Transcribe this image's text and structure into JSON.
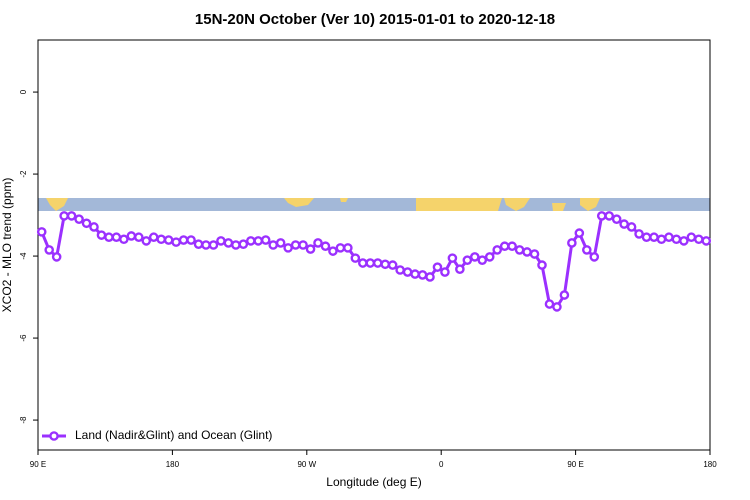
{
  "chart_data": {
    "type": "line",
    "title": "15N-20N October (Ver 10)   2015-01-01 to 2020-12-18",
    "x_label": "Longitude (deg E)",
    "y_label": "XCO2 - MLO trend (ppm)",
    "x": [
      92.5,
      97.5,
      102.5,
      107.5,
      112.5,
      117.5,
      122.5,
      127.5,
      132.5,
      137.5,
      142.5,
      147.5,
      152.5,
      157.5,
      162.5,
      167.5,
      172.5,
      177.5,
      182.5,
      187.5,
      192.5,
      197.5,
      202.5,
      207.5,
      212.5,
      217.5,
      222.5,
      227.5,
      232.5,
      237.5,
      242.5,
      247.5,
      252.5,
      257.5,
      262.5,
      267.5,
      272.5,
      277.5,
      282.5,
      287.5,
      292.5,
      297.5,
      302.5,
      307.5,
      312.5,
      317.5,
      322.5,
      327.5,
      332.5,
      337.5,
      342.5,
      347.5,
      352.5,
      357.5,
      362.5,
      367.5,
      372.5,
      377.5,
      382.5,
      387.5,
      392.5,
      397.5,
      402.5,
      407.5,
      412.5,
      417.5,
      422.5,
      427.5,
      432.5,
      437.5,
      442.5,
      447.5,
      452.5,
      457.5,
      462.5,
      467.5,
      472.5,
      477.5,
      482.5,
      487.5,
      492.5,
      497.5,
      502.5,
      507.5,
      512.5,
      517.5,
      522.5,
      527.5,
      532.5,
      537.5
    ],
    "series": [
      {
        "name": "Land (Nadir&Glint) and Ocean (Glint)",
        "color": "#9b30ff",
        "values": [
          -3.41,
          -3.85,
          -4.02,
          -3.02,
          -3.02,
          -3.1,
          -3.2,
          -3.29,
          -3.49,
          -3.54,
          -3.54,
          -3.59,
          -3.51,
          -3.54,
          -3.63,
          -3.54,
          -3.59,
          -3.61,
          -3.66,
          -3.61,
          -3.61,
          -3.71,
          -3.73,
          -3.73,
          -3.63,
          -3.68,
          -3.73,
          -3.71,
          -3.63,
          -3.63,
          -3.61,
          -3.73,
          -3.68,
          -3.8,
          -3.73,
          -3.73,
          -3.83,
          -3.68,
          -3.76,
          -3.88,
          -3.8,
          -3.8,
          -4.05,
          -4.17,
          -4.17,
          -4.17,
          -4.2,
          -4.22,
          -4.34,
          -4.39,
          -4.44,
          -4.46,
          -4.51,
          -4.27,
          -4.39,
          -4.05,
          -4.32,
          -4.1,
          -4.02,
          -4.1,
          -4.02,
          -3.85,
          -3.76,
          -3.76,
          -3.85,
          -3.9,
          -3.95,
          -4.22,
          -5.17,
          -5.24,
          -4.95,
          -3.68,
          -3.44,
          -3.85,
          -4.02,
          -3.02,
          -3.02,
          -3.1,
          -3.22,
          -3.29,
          -3.46,
          -3.54,
          -3.54,
          -3.59,
          -3.54,
          -3.59,
          -3.63,
          -3.54,
          -3.59,
          -3.63
        ]
      }
    ],
    "xlim": [
      90,
      540
    ],
    "xticks": [
      {
        "value": 90,
        "label": "90 E"
      },
      180,
      {
        "value": 270,
        "label": "90 W"
      },
      {
        "value": 360,
        "label": "0"
      },
      {
        "value": 450,
        "label": "90 E"
      },
      {
        "value": 540,
        "label": "180"
      }
    ],
    "ylim": [
      -8.73,
      1.27
    ],
    "yticks": [
      0,
      -2,
      -4,
      -6,
      -8
    ],
    "legend": "bottomleft"
  }
}
